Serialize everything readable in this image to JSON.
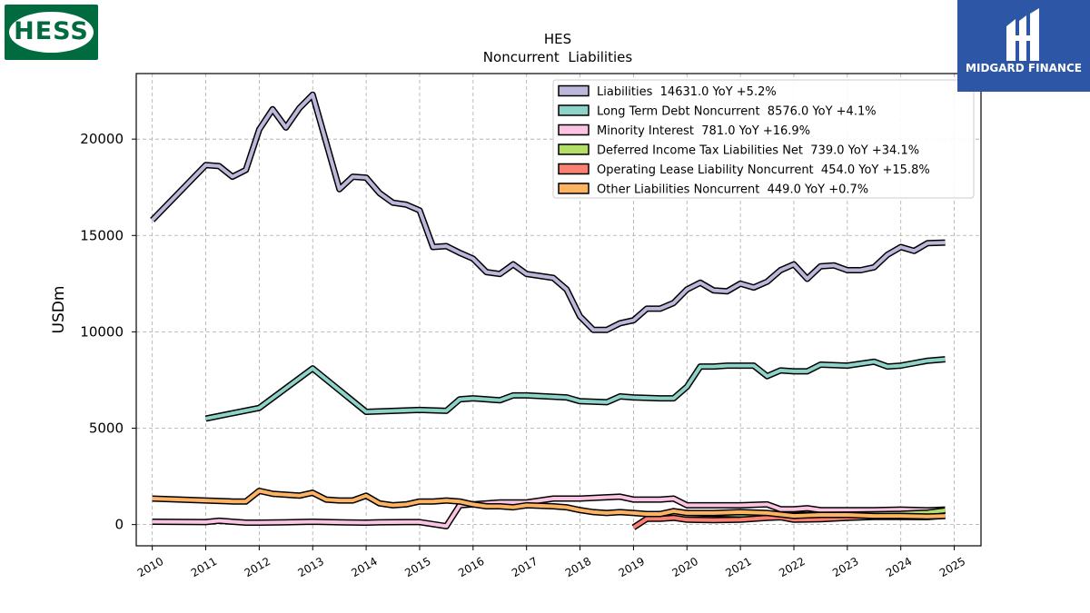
{
  "logos": {
    "company": "HESS",
    "publisher": "MIDGARD FINANCE",
    "company_icon": "hess-logo-icon",
    "publisher_icon": "midgard-logo-icon"
  },
  "chart_data": {
    "type": "line",
    "title": "HES",
    "subtitle": "Noncurrent  Liabilities",
    "ylabel": "USDm",
    "xlabel": "",
    "xlim": [
      2009.7,
      2025.5
    ],
    "ylim": [
      -1100,
      23400
    ],
    "x_ticks": [
      "2010",
      "2011",
      "2012",
      "2013",
      "2014",
      "2015",
      "2016",
      "2017",
      "2018",
      "2019",
      "2020",
      "2021",
      "2022",
      "2023",
      "2024",
      "2025"
    ],
    "y_ticks": [
      "0",
      "5000",
      "10000",
      "15000",
      "20000"
    ],
    "grid": true,
    "legend_position": "top-right",
    "series": [
      {
        "name": "Liabilities",
        "legend_label": "Liabilities  14631.0 YoY +5.2%",
        "color": "#bcb8dc",
        "points": [
          [
            2010.0,
            15800
          ],
          [
            2011.0,
            18650
          ],
          [
            2011.25,
            18600
          ],
          [
            2011.5,
            18050
          ],
          [
            2011.75,
            18400
          ],
          [
            2012.0,
            20500
          ],
          [
            2012.25,
            21550
          ],
          [
            2012.5,
            20600
          ],
          [
            2012.75,
            21600
          ],
          [
            2013.0,
            22300
          ],
          [
            2013.5,
            17400
          ],
          [
            2013.75,
            18050
          ],
          [
            2014.0,
            18000
          ],
          [
            2014.25,
            17200
          ],
          [
            2014.5,
            16700
          ],
          [
            2014.75,
            16600
          ],
          [
            2015.0,
            16300
          ],
          [
            2015.25,
            14400
          ],
          [
            2015.5,
            14450
          ],
          [
            2015.75,
            14100
          ],
          [
            2016.0,
            13800
          ],
          [
            2016.25,
            13100
          ],
          [
            2016.5,
            13000
          ],
          [
            2016.75,
            13500
          ],
          [
            2017.0,
            13000
          ],
          [
            2017.5,
            12800
          ],
          [
            2017.75,
            12200
          ],
          [
            2018.0,
            10800
          ],
          [
            2018.25,
            10100
          ],
          [
            2018.5,
            10100
          ],
          [
            2018.75,
            10450
          ],
          [
            2019.0,
            10600
          ],
          [
            2019.25,
            11200
          ],
          [
            2019.5,
            11200
          ],
          [
            2019.75,
            11500
          ],
          [
            2020.0,
            12200
          ],
          [
            2020.25,
            12550
          ],
          [
            2020.5,
            12150
          ],
          [
            2020.75,
            12100
          ],
          [
            2021.0,
            12500
          ],
          [
            2021.25,
            12300
          ],
          [
            2021.5,
            12600
          ],
          [
            2021.75,
            13200
          ],
          [
            2022.0,
            13500
          ],
          [
            2022.25,
            12750
          ],
          [
            2022.5,
            13400
          ],
          [
            2022.75,
            13450
          ],
          [
            2023.0,
            13200
          ],
          [
            2023.25,
            13200
          ],
          [
            2023.5,
            13350
          ],
          [
            2023.75,
            14000
          ],
          [
            2024.0,
            14400
          ],
          [
            2024.25,
            14200
          ],
          [
            2024.5,
            14600
          ],
          [
            2024.83,
            14631
          ]
        ]
      },
      {
        "name": "Long Term Debt Noncurrent",
        "legend_label": "Long Term Debt Noncurrent  8576.0 YoY +4.1%",
        "color": "#8dd3c7",
        "points": [
          [
            2011.0,
            5500
          ],
          [
            2012.0,
            6050
          ],
          [
            2013.0,
            8100
          ],
          [
            2014.0,
            5850
          ],
          [
            2015.0,
            5950
          ],
          [
            2015.5,
            5900
          ],
          [
            2015.75,
            6500
          ],
          [
            2016.0,
            6550
          ],
          [
            2016.5,
            6450
          ],
          [
            2016.75,
            6700
          ],
          [
            2017.0,
            6700
          ],
          [
            2017.75,
            6600
          ],
          [
            2018.0,
            6400
          ],
          [
            2018.5,
            6350
          ],
          [
            2018.75,
            6650
          ],
          [
            2019.0,
            6600
          ],
          [
            2019.5,
            6550
          ],
          [
            2019.75,
            6550
          ],
          [
            2020.0,
            7150
          ],
          [
            2020.25,
            8200
          ],
          [
            2020.5,
            8200
          ],
          [
            2020.75,
            8250
          ],
          [
            2021.0,
            8250
          ],
          [
            2021.25,
            8250
          ],
          [
            2021.5,
            7700
          ],
          [
            2021.75,
            8000
          ],
          [
            2022.0,
            7950
          ],
          [
            2022.25,
            7950
          ],
          [
            2022.5,
            8300
          ],
          [
            2023.0,
            8250
          ],
          [
            2023.5,
            8450
          ],
          [
            2023.75,
            8200
          ],
          [
            2024.0,
            8250
          ],
          [
            2024.5,
            8500
          ],
          [
            2024.83,
            8576
          ]
        ]
      },
      {
        "name": "Minority Interest",
        "legend_label": "Minority Interest  781.0 YoY +16.9%",
        "color": "#fbc4e2",
        "points": [
          [
            2010.0,
            150
          ],
          [
            2011.0,
            130
          ],
          [
            2011.25,
            200
          ],
          [
            2011.5,
            150
          ],
          [
            2011.75,
            100
          ],
          [
            2012.0,
            100
          ],
          [
            2012.5,
            120
          ],
          [
            2013.0,
            150
          ],
          [
            2013.5,
            120
          ],
          [
            2014.0,
            100
          ],
          [
            2014.25,
            120
          ],
          [
            2014.75,
            130
          ],
          [
            2015.0,
            130
          ],
          [
            2015.5,
            -80
          ],
          [
            2015.75,
            1000
          ],
          [
            2016.0,
            1050
          ],
          [
            2016.5,
            1150
          ],
          [
            2017.0,
            1150
          ],
          [
            2017.5,
            1350
          ],
          [
            2018.0,
            1350
          ],
          [
            2018.75,
            1450
          ],
          [
            2019.0,
            1300
          ],
          [
            2019.5,
            1300
          ],
          [
            2019.75,
            1350
          ],
          [
            2020.0,
            1000
          ],
          [
            2021.0,
            1000
          ],
          [
            2021.5,
            1050
          ],
          [
            2021.75,
            800
          ],
          [
            2022.0,
            800
          ],
          [
            2022.25,
            850
          ],
          [
            2022.5,
            750
          ],
          [
            2023.0,
            750
          ],
          [
            2023.5,
            750
          ],
          [
            2024.0,
            780
          ],
          [
            2024.5,
            740
          ],
          [
            2024.83,
            781
          ]
        ]
      },
      {
        "name": "Deferred Income Tax Liabilities Net",
        "legend_label": "Deferred Income Tax Liabilities Net  739.0 YoY +34.1%",
        "color": "#b3de69",
        "points": [
          [
            2020.0,
            600
          ],
          [
            2021.0,
            520
          ],
          [
            2022.0,
            500
          ],
          [
            2023.0,
            520
          ],
          [
            2023.5,
            540
          ],
          [
            2024.0,
            560
          ],
          [
            2024.5,
            620
          ],
          [
            2024.83,
            739
          ]
        ]
      },
      {
        "name": "Operating Lease Liability Noncurrent",
        "legend_label": "Operating Lease Liability Noncurrent  454.0 YoY +15.8%",
        "color": "#fb8072",
        "points": [
          [
            2019.0,
            -150
          ],
          [
            2019.25,
            300
          ],
          [
            2019.5,
            300
          ],
          [
            2019.75,
            350
          ],
          [
            2020.0,
            250
          ],
          [
            2020.5,
            230
          ],
          [
            2021.0,
            250
          ],
          [
            2021.5,
            350
          ],
          [
            2021.75,
            380
          ],
          [
            2022.0,
            250
          ],
          [
            2022.5,
            280
          ],
          [
            2023.0,
            350
          ],
          [
            2023.5,
            400
          ],
          [
            2024.0,
            400
          ],
          [
            2024.5,
            390
          ],
          [
            2024.83,
            454
          ]
        ]
      },
      {
        "name": "Other Liabilities Noncurrent",
        "legend_label": "Other Liabilities Noncurrent  449.0 YoY +0.7%",
        "color": "#fdb462",
        "points": [
          [
            2010.0,
            1350
          ],
          [
            2011.0,
            1250
          ],
          [
            2011.5,
            1200
          ],
          [
            2011.75,
            1200
          ],
          [
            2012.0,
            1750
          ],
          [
            2012.25,
            1600
          ],
          [
            2012.5,
            1550
          ],
          [
            2012.75,
            1500
          ],
          [
            2013.0,
            1650
          ],
          [
            2013.25,
            1300
          ],
          [
            2013.5,
            1250
          ],
          [
            2013.75,
            1250
          ],
          [
            2014.0,
            1500
          ],
          [
            2014.25,
            1100
          ],
          [
            2014.5,
            1000
          ],
          [
            2014.75,
            1050
          ],
          [
            2015.0,
            1200
          ],
          [
            2015.25,
            1200
          ],
          [
            2015.5,
            1250
          ],
          [
            2015.75,
            1200
          ],
          [
            2016.0,
            1050
          ],
          [
            2016.25,
            950
          ],
          [
            2016.5,
            950
          ],
          [
            2016.75,
            900
          ],
          [
            2017.0,
            1000
          ],
          [
            2017.5,
            950
          ],
          [
            2017.75,
            900
          ],
          [
            2018.0,
            750
          ],
          [
            2018.25,
            650
          ],
          [
            2018.5,
            600
          ],
          [
            2018.75,
            650
          ],
          [
            2019.0,
            600
          ],
          [
            2019.25,
            550
          ],
          [
            2019.5,
            550
          ],
          [
            2019.75,
            700
          ],
          [
            2020.0,
            600
          ],
          [
            2020.5,
            600
          ],
          [
            2021.0,
            650
          ],
          [
            2021.5,
            600
          ],
          [
            2022.0,
            450
          ],
          [
            2022.5,
            500
          ],
          [
            2023.0,
            500
          ],
          [
            2023.5,
            450
          ],
          [
            2024.0,
            450
          ],
          [
            2024.5,
            420
          ],
          [
            2024.83,
            449
          ]
        ]
      }
    ]
  }
}
